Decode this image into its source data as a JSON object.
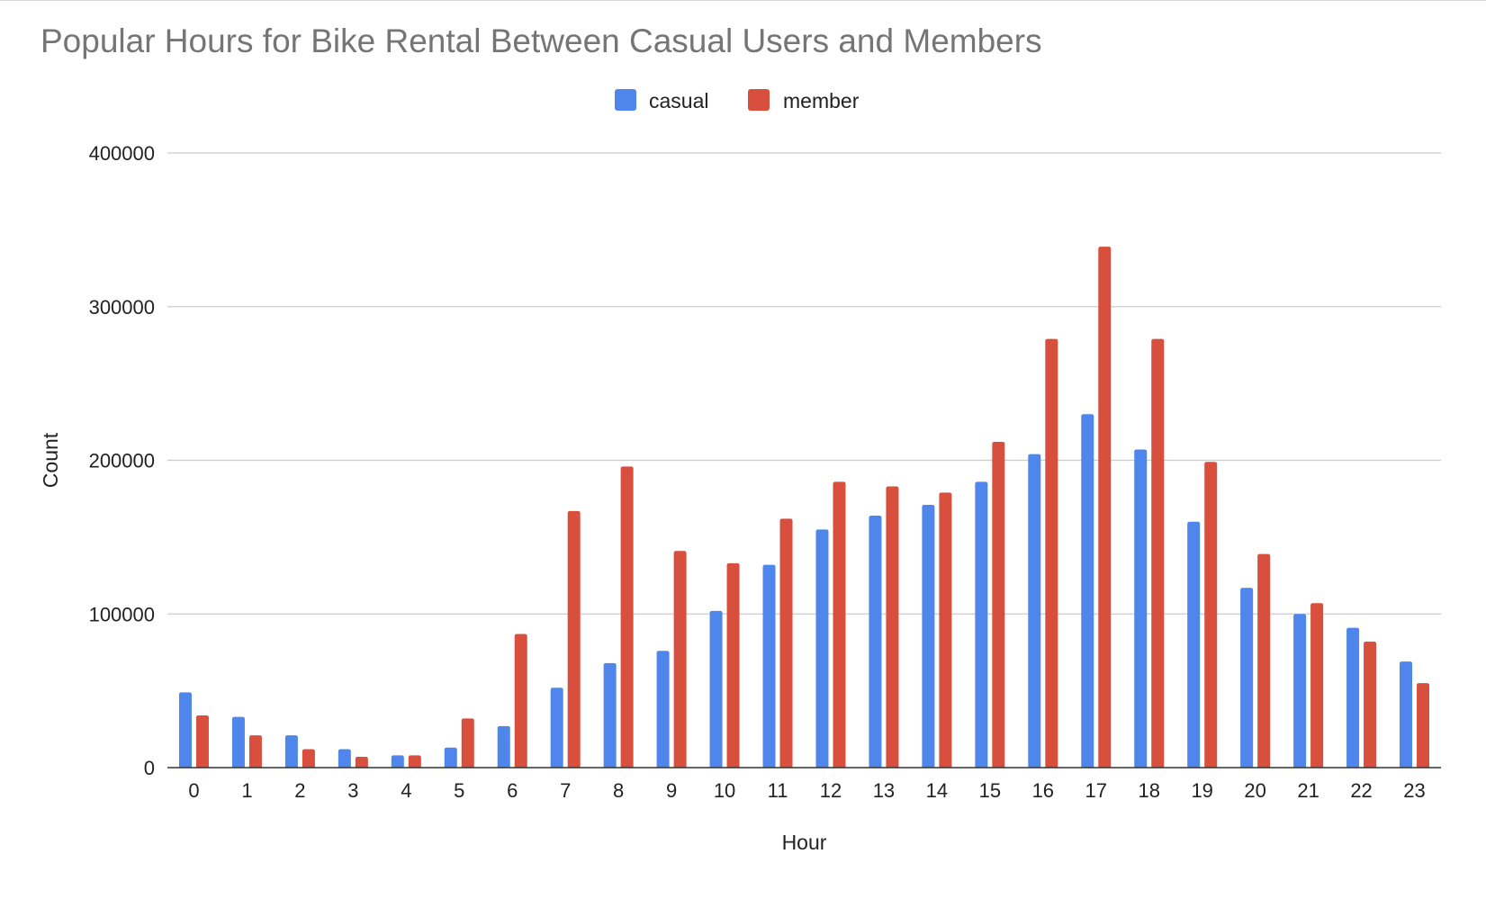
{
  "chart_data": {
    "type": "bar",
    "title": "Popular Hours for Bike Rental Between Casual Users and Members",
    "xlabel": "Hour",
    "ylabel": "Count",
    "ylim": [
      0,
      400000
    ],
    "yticks": [
      0,
      100000,
      200000,
      300000,
      400000
    ],
    "grid": true,
    "legend_position": "top-center",
    "categories": [
      "0",
      "1",
      "2",
      "3",
      "4",
      "5",
      "6",
      "7",
      "8",
      "9",
      "10",
      "11",
      "12",
      "13",
      "14",
      "15",
      "16",
      "17",
      "18",
      "19",
      "20",
      "21",
      "22",
      "23"
    ],
    "series": [
      {
        "name": "casual",
        "color": "#4f86ec",
        "values": [
          49000,
          33000,
          21000,
          12000,
          8000,
          13000,
          27000,
          52000,
          68000,
          76000,
          102000,
          132000,
          155000,
          164000,
          171000,
          186000,
          204000,
          230000,
          207000,
          160000,
          117000,
          100000,
          91000,
          69000
        ]
      },
      {
        "name": "member",
        "color": "#d94f3d",
        "values": [
          34000,
          21000,
          12000,
          7000,
          8000,
          32000,
          87000,
          167000,
          196000,
          141000,
          133000,
          162000,
          186000,
          183000,
          179000,
          212000,
          279000,
          339000,
          279000,
          199000,
          139000,
          107000,
          82000,
          55000
        ]
      }
    ]
  }
}
